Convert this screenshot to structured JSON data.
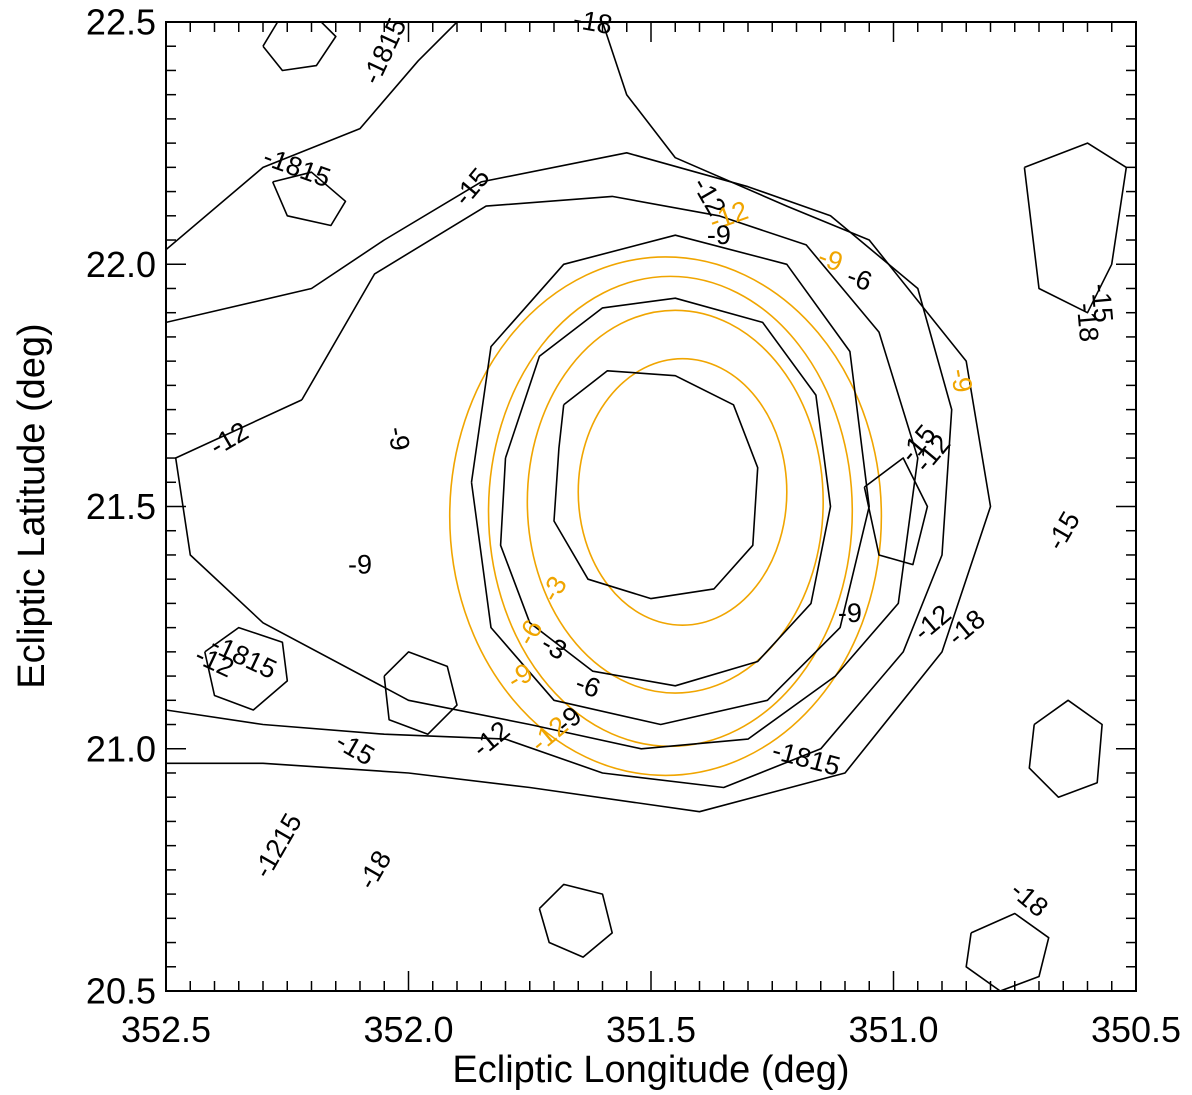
{
  "chart_data": {
    "type": "contour",
    "xlabel": "Ecliptic Longitude (deg)",
    "ylabel": "Ecliptic Latitude (deg)",
    "xlim": [
      352.5,
      350.5
    ],
    "ylim": [
      20.5,
      22.5
    ],
    "x_ticks": [
      {
        "value": 352.5,
        "label": "352.5"
      },
      {
        "value": 352.0,
        "label": "352.0"
      },
      {
        "value": 351.5,
        "label": "351.5"
      },
      {
        "value": 351.0,
        "label": "351.0"
      },
      {
        "value": 350.5,
        "label": "350.5"
      }
    ],
    "y_ticks": [
      {
        "value": 20.5,
        "label": "20.5"
      },
      {
        "value": 21.0,
        "label": "21.0"
      },
      {
        "value": 21.5,
        "label": "21.5"
      },
      {
        "value": 22.0,
        "label": "22.0"
      },
      {
        "value": 22.5,
        "label": "22.5"
      }
    ],
    "grid": false,
    "colors": {
      "data": "#000000",
      "model": "#f0a500"
    },
    "model_contours": [
      {
        "level": -3,
        "center": [
          351.435,
          21.53
        ],
        "radii": [
          0.215,
          0.275
        ]
      },
      {
        "level": -6,
        "center": [
          351.45,
          21.51
        ],
        "radii": [
          0.305,
          0.395
        ]
      },
      {
        "level": -9,
        "center": [
          351.46,
          21.49
        ],
        "radii": [
          0.375,
          0.485
        ]
      },
      {
        "level": -12,
        "center": [
          351.47,
          21.48
        ],
        "radii": [
          0.445,
          0.535
        ]
      }
    ],
    "data_contours": [
      {
        "level": -3,
        "points": [
          [
            351.68,
            21.71
          ],
          [
            351.59,
            21.78
          ],
          [
            351.45,
            21.77
          ],
          [
            351.33,
            21.71
          ],
          [
            351.28,
            21.58
          ],
          [
            351.29,
            21.42
          ],
          [
            351.37,
            21.33
          ],
          [
            351.5,
            21.31
          ],
          [
            351.63,
            21.35
          ],
          [
            351.7,
            21.47
          ],
          [
            351.69,
            21.62
          ],
          [
            351.68,
            21.71
          ]
        ]
      },
      {
        "level": -6,
        "points": [
          [
            351.8,
            21.6
          ],
          [
            351.73,
            21.81
          ],
          [
            351.6,
            21.91
          ],
          [
            351.45,
            21.93
          ],
          [
            351.27,
            21.88
          ],
          [
            351.16,
            21.73
          ],
          [
            351.13,
            21.5
          ],
          [
            351.17,
            21.3
          ],
          [
            351.28,
            21.18
          ],
          [
            351.45,
            21.13
          ],
          [
            351.62,
            21.16
          ],
          [
            351.75,
            21.26
          ],
          [
            351.81,
            21.42
          ],
          [
            351.8,
            21.6
          ]
        ]
      },
      {
        "level": -9,
        "points": [
          [
            351.87,
            21.55
          ],
          [
            351.83,
            21.83
          ],
          [
            351.68,
            22.0
          ],
          [
            351.45,
            22.06
          ],
          [
            351.22,
            22.0
          ],
          [
            351.09,
            21.82
          ],
          [
            351.05,
            21.5
          ],
          [
            351.11,
            21.25
          ],
          [
            351.26,
            21.1
          ],
          [
            351.48,
            21.05
          ],
          [
            351.7,
            21.1
          ],
          [
            351.83,
            21.25
          ],
          [
            351.87,
            21.55
          ]
        ]
      },
      {
        "level": -12,
        "points": [
          [
            352.22,
            21.72
          ],
          [
            352.07,
            21.98
          ],
          [
            351.84,
            22.12
          ],
          [
            351.58,
            22.14
          ],
          [
            351.36,
            22.1
          ],
          [
            351.18,
            22.04
          ],
          [
            351.03,
            21.86
          ],
          [
            350.95,
            21.6
          ],
          [
            350.99,
            21.3
          ],
          [
            351.12,
            21.15
          ],
          [
            351.3,
            21.02
          ],
          [
            351.52,
            21.0
          ],
          [
            351.75,
            21.05
          ],
          [
            352.0,
            21.1
          ],
          [
            352.3,
            21.26
          ],
          [
            352.45,
            21.4
          ],
          [
            352.48,
            21.6
          ],
          [
            352.22,
            21.72
          ]
        ]
      },
      {
        "level": -15,
        "points": [
          [
            352.5,
            21.88
          ],
          [
            352.2,
            21.95
          ],
          [
            352.05,
            22.05
          ],
          [
            351.85,
            22.17
          ],
          [
            351.55,
            22.23
          ],
          [
            351.3,
            22.16
          ],
          [
            351.13,
            22.1
          ],
          [
            350.95,
            21.95
          ],
          [
            350.88,
            21.7
          ],
          [
            350.9,
            21.4
          ],
          [
            350.98,
            21.2
          ],
          [
            351.15,
            21.0
          ],
          [
            351.35,
            20.92
          ],
          [
            351.6,
            20.95
          ],
          [
            351.8,
            21.02
          ],
          [
            352.05,
            21.03
          ],
          [
            352.3,
            21.05
          ],
          [
            352.5,
            21.08
          ]
        ]
      },
      {
        "level": -18,
        "points": [
          [
            352.5,
            22.03
          ],
          [
            352.3,
            22.2
          ],
          [
            352.1,
            22.28
          ],
          [
            351.98,
            22.42
          ],
          [
            351.9,
            22.5
          ],
          [
            351.8,
            22.53
          ],
          [
            351.6,
            22.5
          ],
          [
            351.55,
            22.35
          ],
          [
            351.45,
            22.22
          ],
          [
            351.22,
            22.12
          ],
          [
            351.05,
            22.05
          ],
          [
            350.85,
            21.8
          ],
          [
            350.8,
            21.5
          ],
          [
            350.9,
            21.2
          ],
          [
            351.1,
            20.95
          ],
          [
            351.4,
            20.87
          ],
          [
            351.75,
            20.92
          ],
          [
            352.0,
            20.95
          ],
          [
            352.3,
            20.97
          ],
          [
            352.5,
            20.97
          ]
        ]
      },
      {
        "level": -18,
        "points": [
          [
            352.3,
            22.45
          ],
          [
            352.27,
            22.5
          ],
          [
            352.2,
            22.52
          ],
          [
            352.15,
            22.47
          ],
          [
            352.19,
            22.41
          ],
          [
            352.26,
            22.4
          ],
          [
            352.3,
            22.45
          ]
        ]
      },
      {
        "level": -18,
        "points": [
          [
            352.42,
            21.2
          ],
          [
            352.35,
            21.25
          ],
          [
            352.26,
            21.22
          ],
          [
            352.25,
            21.14
          ],
          [
            352.32,
            21.08
          ],
          [
            352.4,
            21.11
          ],
          [
            352.42,
            21.2
          ]
        ]
      },
      {
        "level": -18,
        "points": [
          [
            352.05,
            21.15
          ],
          [
            352.0,
            21.2
          ],
          [
            351.92,
            21.17
          ],
          [
            351.9,
            21.09
          ],
          [
            351.96,
            21.03
          ],
          [
            352.04,
            21.06
          ],
          [
            352.05,
            21.15
          ]
        ]
      },
      {
        "level": -18,
        "points": [
          [
            351.73,
            20.67
          ],
          [
            351.68,
            20.72
          ],
          [
            351.6,
            20.7
          ],
          [
            351.58,
            20.62
          ],
          [
            351.64,
            20.57
          ],
          [
            351.71,
            20.6
          ],
          [
            351.73,
            20.67
          ]
        ]
      },
      {
        "level": -18,
        "points": [
          [
            350.84,
            20.62
          ],
          [
            350.75,
            20.66
          ],
          [
            350.68,
            20.61
          ],
          [
            350.7,
            20.53
          ],
          [
            350.78,
            20.5
          ],
          [
            350.85,
            20.55
          ],
          [
            350.84,
            20.62
          ]
        ]
      },
      {
        "level": -18,
        "points": [
          [
            350.71,
            21.05
          ],
          [
            350.64,
            21.1
          ],
          [
            350.57,
            21.05
          ],
          [
            350.58,
            20.93
          ],
          [
            350.66,
            20.9
          ],
          [
            350.72,
            20.96
          ],
          [
            350.71,
            21.05
          ]
        ]
      },
      {
        "level": -18,
        "points": [
          [
            350.73,
            22.2
          ],
          [
            350.6,
            22.25
          ],
          [
            350.52,
            22.2
          ],
          [
            350.55,
            22.0
          ],
          [
            350.6,
            21.9
          ],
          [
            350.7,
            21.95
          ],
          [
            350.73,
            22.2
          ]
        ]
      },
      {
        "level": -18,
        "points": [
          [
            351.06,
            21.54
          ],
          [
            350.98,
            21.6
          ],
          [
            350.93,
            21.5
          ],
          [
            350.96,
            21.38
          ],
          [
            351.03,
            21.4
          ],
          [
            351.06,
            21.54
          ]
        ]
      },
      {
        "level": -18,
        "points": [
          [
            352.28,
            22.17
          ],
          [
            352.25,
            22.1
          ],
          [
            352.16,
            22.08
          ],
          [
            352.13,
            22.13
          ],
          [
            352.2,
            22.19
          ],
          [
            352.28,
            22.17
          ]
        ]
      }
    ],
    "labels": [
      {
        "text": "-18",
        "x": 351.62,
        "y": 22.5,
        "rotate": 10,
        "color": "data"
      },
      {
        "text": "-1815",
        "x": 352.05,
        "y": 22.44,
        "rotate": -65,
        "color": "data"
      },
      {
        "text": "-1815",
        "x": 352.23,
        "y": 22.2,
        "rotate": 20,
        "color": "data"
      },
      {
        "text": "-15",
        "x": 351.87,
        "y": 22.16,
        "rotate": -50,
        "color": "data"
      },
      {
        "text": "-12",
        "x": 351.38,
        "y": 22.14,
        "rotate": 60,
        "color": "data"
      },
      {
        "text": "-12",
        "x": 351.34,
        "y": 22.1,
        "rotate": -20,
        "color": "model"
      },
      {
        "text": "-9",
        "x": 351.36,
        "y": 22.06,
        "rotate": 0,
        "color": "data"
      },
      {
        "text": "-9",
        "x": 351.13,
        "y": 22.01,
        "rotate": 20,
        "color": "model"
      },
      {
        "text": "-6",
        "x": 351.07,
        "y": 21.97,
        "rotate": 20,
        "color": "data"
      },
      {
        "text": "-9",
        "x": 350.86,
        "y": 21.76,
        "rotate": 80,
        "color": "model"
      },
      {
        "text": "-15",
        "x": 350.57,
        "y": 21.92,
        "rotate": 85,
        "color": "data"
      },
      {
        "text": "-18",
        "x": 350.6,
        "y": 21.88,
        "rotate": 85,
        "color": "data"
      },
      {
        "text": "-12",
        "x": 352.37,
        "y": 21.64,
        "rotate": -30,
        "color": "data"
      },
      {
        "text": "-9",
        "x": 352.02,
        "y": 21.64,
        "rotate": 80,
        "color": "data"
      },
      {
        "text": "-15",
        "x": 350.95,
        "y": 21.63,
        "rotate": -50,
        "color": "data"
      },
      {
        "text": "-12",
        "x": 350.92,
        "y": 21.61,
        "rotate": -50,
        "color": "data"
      },
      {
        "text": "-9",
        "x": 352.1,
        "y": 21.38,
        "rotate": 0,
        "color": "data"
      },
      {
        "text": "-15",
        "x": 350.65,
        "y": 21.45,
        "rotate": -60,
        "color": "data"
      },
      {
        "text": "-3",
        "x": 351.7,
        "y": 21.33,
        "rotate": -60,
        "color": "model"
      },
      {
        "text": "-9",
        "x": 351.09,
        "y": 21.28,
        "rotate": 0,
        "color": "data"
      },
      {
        "text": "-12",
        "x": 350.92,
        "y": 21.26,
        "rotate": -40,
        "color": "data"
      },
      {
        "text": "-18",
        "x": 350.85,
        "y": 21.25,
        "rotate": -40,
        "color": "data"
      },
      {
        "text": "-6",
        "x": 351.75,
        "y": 21.24,
        "rotate": -60,
        "color": "model"
      },
      {
        "text": "-3",
        "x": 351.7,
        "y": 21.21,
        "rotate": 30,
        "color": "data"
      },
      {
        "text": "-1815",
        "x": 352.34,
        "y": 21.19,
        "rotate": 25,
        "color": "data"
      },
      {
        "text": "-12",
        "x": 352.4,
        "y": 21.18,
        "rotate": 25,
        "color": "data"
      },
      {
        "text": "-9",
        "x": 351.77,
        "y": 21.15,
        "rotate": -30,
        "color": "model"
      },
      {
        "text": "-6",
        "x": 351.63,
        "y": 21.13,
        "rotate": 20,
        "color": "data"
      },
      {
        "text": "-9",
        "x": 351.67,
        "y": 21.06,
        "rotate": -40,
        "color": "data"
      },
      {
        "text": "-12",
        "x": 351.71,
        "y": 21.03,
        "rotate": -40,
        "color": "model"
      },
      {
        "text": "-12",
        "x": 351.83,
        "y": 21.02,
        "rotate": -40,
        "color": "data"
      },
      {
        "text": "-15",
        "x": 352.11,
        "y": 21.0,
        "rotate": 30,
        "color": "data"
      },
      {
        "text": "-1815",
        "x": 351.18,
        "y": 20.98,
        "rotate": 15,
        "color": "data"
      },
      {
        "text": "-1215",
        "x": 352.27,
        "y": 20.8,
        "rotate": -60,
        "color": "data"
      },
      {
        "text": "-18",
        "x": 352.07,
        "y": 20.75,
        "rotate": -60,
        "color": "data"
      },
      {
        "text": "-18",
        "x": 350.72,
        "y": 20.69,
        "rotate": 40,
        "color": "data"
      }
    ]
  }
}
